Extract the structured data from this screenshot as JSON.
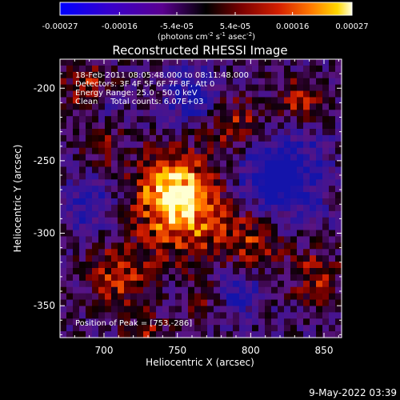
{
  "chart_data": {
    "type": "heatmap",
    "title": "Reconstructed RHESSI Image",
    "xlabel": "Heliocentric X (arcsec)",
    "ylabel": "Heliocentric Y (arcsec)",
    "xlim": [
      670,
      862
    ],
    "ylim": [
      -372,
      -180
    ],
    "x_ticks": [
      "700",
      "750",
      "800",
      "850"
    ],
    "y_ticks": [
      "-200",
      "-250",
      "-300",
      "-350"
    ],
    "x_tick_values": [
      700,
      750,
      800,
      850
    ],
    "y_tick_values": [
      -200,
      -250,
      -300,
      -350
    ],
    "colorbar": {
      "range": [
        -0.00027,
        0.00027
      ],
      "tick_labels": [
        "-0.00027",
        "-0.00016",
        "-5.4e-05",
        "5.4e-05",
        "0.00016",
        "0.00027"
      ],
      "tick_values": [
        -0.00027,
        -0.00016,
        -5.4e-05,
        5.4e-05,
        0.00016,
        0.00027
      ],
      "units_label": "(photons cm",
      "units_exp1": "-2",
      "units_mid": " s",
      "units_exp2": "-1",
      "units_mid2": " asec",
      "units_exp3": "-2",
      "units_end": ")"
    },
    "annotations": [
      "18-Feb-2011 08:05:48.000 to 08:11:48.000",
      "Detectors: 3F 4F 5F 6F 7F 8F, Att 0",
      "Energy Range: 25.0 - 50.0 keV",
      "Clean     Total counts: 6.07E+03"
    ],
    "peak_label": "Position of Peak = [753,-286]",
    "peak_position": [
      753,
      -286
    ],
    "grid": false,
    "colors": {
      "cmap": [
        "#0000ff",
        "#3b00d6",
        "#6a00a8",
        "#000000",
        "#7a0000",
        "#d41000",
        "#ff6a00",
        "#ffcc00",
        "#ffffcc"
      ]
    }
  },
  "footer": {
    "timestamp": "9-May-2022 03:39"
  }
}
